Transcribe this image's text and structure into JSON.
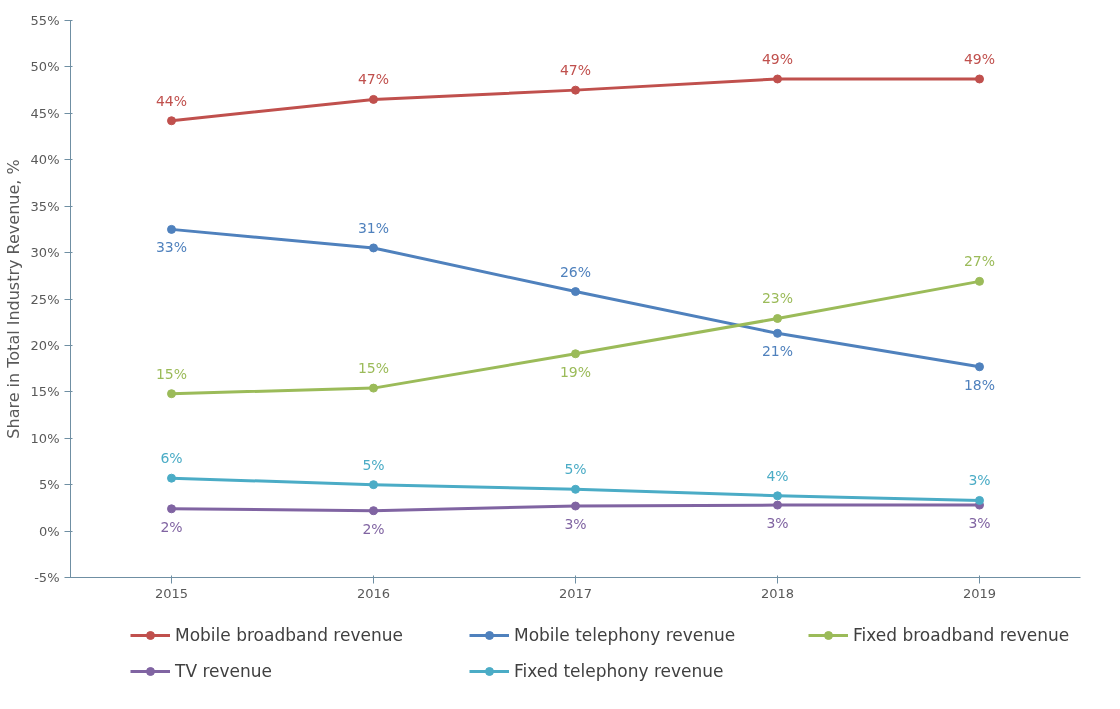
{
  "chart_data": {
    "type": "line",
    "ylabel": "Share in Total Industry Revenue, %",
    "categories": [
      "2015",
      "2016",
      "2017",
      "2018",
      "2019"
    ],
    "series": [
      {
        "name": "Mobile broadband revenue",
        "color": "#c0504d",
        "values": [
          44.2,
          46.5,
          47.5,
          48.7,
          48.7
        ],
        "value_labels": [
          "44%",
          "47%",
          "47%",
          "49%",
          "49%"
        ]
      },
      {
        "name": "Mobile telephony revenue",
        "color": "#4f81bd",
        "values": [
          32.5,
          30.5,
          25.8,
          21.3,
          17.7
        ],
        "value_labels": [
          "33%",
          "31%",
          "26%",
          "21%",
          "18%"
        ]
      },
      {
        "name": "Fixed broadband revenue",
        "color": "#9bbb59",
        "values": [
          14.8,
          15.4,
          19.1,
          22.9,
          26.9
        ],
        "value_labels": [
          "15%",
          "15%",
          "19%",
          "23%",
          "27%"
        ]
      },
      {
        "name": "TV revenue",
        "color": "#8064a2",
        "values": [
          2.4,
          2.2,
          2.7,
          2.8,
          2.8
        ],
        "value_labels": [
          "2%",
          "2%",
          "3%",
          "3%",
          "3%"
        ]
      },
      {
        "name": "Fixed telephony revenue",
        "color": "#4bacc6",
        "values": [
          5.7,
          5.0,
          4.5,
          3.8,
          3.3
        ],
        "value_labels": [
          "6%",
          "5%",
          "5%",
          "4%",
          "3%"
        ]
      }
    ],
    "ylim": [
      -5,
      55
    ],
    "yticks": [
      {
        "value": -5,
        "label": "-5%"
      },
      {
        "value": 0,
        "label": "0%"
      },
      {
        "value": 5,
        "label": "5%"
      },
      {
        "value": 10,
        "label": "10%"
      },
      {
        "value": 15,
        "label": "15%"
      },
      {
        "value": 20,
        "label": "20%"
      },
      {
        "value": 25,
        "label": "25%"
      },
      {
        "value": 30,
        "label": "30%"
      },
      {
        "value": 35,
        "label": "35%"
      },
      {
        "value": 40,
        "label": "40%"
      },
      {
        "value": 45,
        "label": "45%"
      },
      {
        "value": 50,
        "label": "50%"
      },
      {
        "value": 55,
        "label": "55%"
      }
    ],
    "grid": false,
    "legend": "bottom",
    "marker": "circle",
    "line_style": "solid"
  }
}
